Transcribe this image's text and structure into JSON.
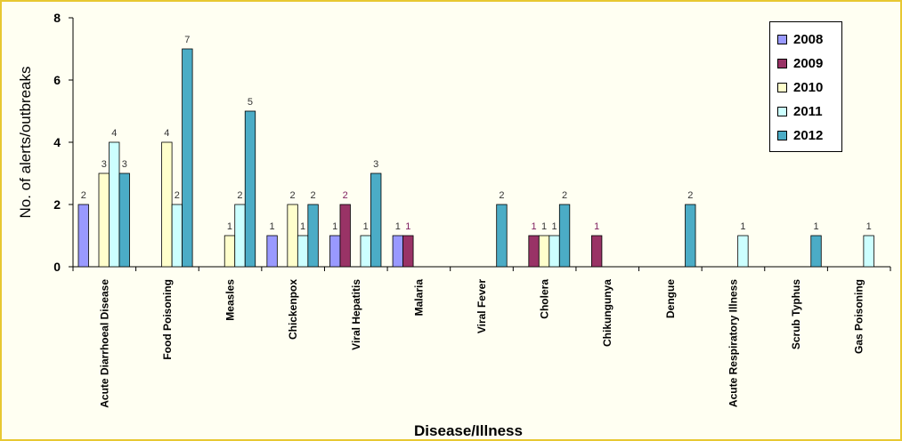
{
  "chart_data": {
    "type": "bar",
    "title": "",
    "xlabel": "Disease/Illness",
    "ylabel": "No. of alerts/outbreaks",
    "ylim": [
      0,
      8
    ],
    "yticks": [
      "0",
      "2",
      "4",
      "6",
      "8"
    ],
    "grid": false,
    "legend_position": "top-right",
    "categories": [
      "Acute Diarrhoeal Disease",
      "Food Poisoning",
      "Measles",
      "Chickenpox",
      "Viral Hepatitis",
      "Malaria",
      "Viral Fever",
      "Cholera",
      "Chikungunya",
      "Dengue",
      "Acute Respiratory Illness",
      "Scrub Typhus",
      "Gas Poisoning"
    ],
    "series": [
      {
        "name": "2008",
        "color": "#9999ff",
        "values": [
          2,
          0,
          0,
          1,
          1,
          1,
          0,
          0,
          0,
          0,
          0,
          0,
          0
        ]
      },
      {
        "name": "2009",
        "color": "#993366",
        "values": [
          0,
          0,
          0,
          0,
          2,
          1,
          0,
          1,
          1,
          0,
          0,
          0,
          0
        ]
      },
      {
        "name": "2010",
        "color": "#ffffcc",
        "values": [
          3,
          4,
          1,
          2,
          0,
          0,
          0,
          1,
          0,
          0,
          0,
          0,
          0
        ]
      },
      {
        "name": "2011",
        "color": "#ccffff",
        "values": [
          4,
          2,
          2,
          1,
          1,
          0,
          0,
          1,
          0,
          0,
          1,
          0,
          1
        ]
      },
      {
        "name": "2012",
        "color": "#4bacc6",
        "values": [
          3,
          7,
          5,
          2,
          3,
          0,
          2,
          2,
          0,
          2,
          0,
          1,
          0
        ]
      }
    ]
  }
}
